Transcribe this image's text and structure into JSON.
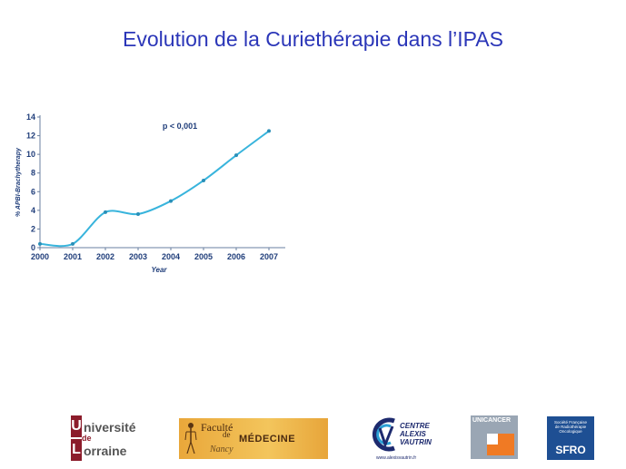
{
  "slide": {
    "title": "Evolution de la Curiethérapie dans l’IPAS"
  },
  "chart_data": {
    "type": "line",
    "title": "",
    "xlabel": "Year",
    "ylabel": "% APBI-Brachytherapy",
    "annotation": "p < 0,001",
    "x": [
      2000,
      2001,
      2002,
      2003,
      2004,
      2005,
      2006,
      2007
    ],
    "series": [
      {
        "name": "",
        "values": [
          0.4,
          0.4,
          3.8,
          3.6,
          5.0,
          7.2,
          9.9,
          12.5
        ]
      }
    ],
    "xlim": [
      2000,
      2007
    ],
    "ylim": [
      0,
      14
    ],
    "yticks": [
      0,
      2,
      4,
      6,
      8,
      10,
      12,
      14
    ],
    "grid": false,
    "color": "#38b4dc"
  },
  "logos": {
    "universite_lorraine": {
      "line1": "niversité",
      "line2": "orraine",
      "small": "de",
      "U": "U",
      "L": "L",
      "color": "#8c1c2b"
    },
    "faculte_medecine": {
      "line1": "Faculté",
      "line2": "de",
      "line3": "MÉDECINE",
      "line4": "Nancy"
    },
    "centre_alexis_vautrin": {
      "line1": "CENTRE",
      "line2": "ALEXIS",
      "line3": "VAUTRIN",
      "url": "www.alexisvautrin.fr"
    },
    "unicancer": {
      "text": "UNICANCER"
    },
    "sfro": {
      "small1": "Société Française",
      "small2": "de Radiothérapie",
      "small3": "Oncologique",
      "big": "SFRO"
    }
  }
}
